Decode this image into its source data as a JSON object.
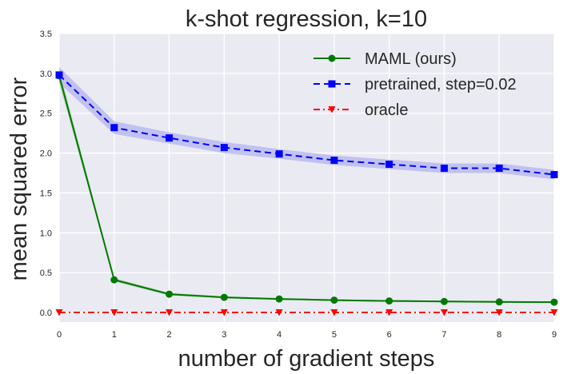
{
  "chart_data": {
    "type": "line",
    "title": "k-shot regression, k=10",
    "xlabel": "number of gradient steps",
    "ylabel": "mean squared error",
    "x": [
      0,
      1,
      2,
      3,
      4,
      5,
      6,
      7,
      8,
      9
    ],
    "xlim": [
      0,
      9
    ],
    "ylim": [
      -0.12,
      3.5
    ],
    "xticks": [
      "0",
      "1",
      "2",
      "3",
      "4",
      "5",
      "6",
      "7",
      "8",
      "9"
    ],
    "yticks": [
      {
        "value": 0.0,
        "label": "0.0"
      },
      {
        "value": 0.5,
        "label": "0.5"
      },
      {
        "value": 1.0,
        "label": "1.0"
      },
      {
        "value": 1.5,
        "label": "1.5"
      },
      {
        "value": 2.0,
        "label": "2.0"
      },
      {
        "value": 2.5,
        "label": "2.5"
      },
      {
        "value": 3.0,
        "label": "3.0"
      },
      {
        "value": 3.5,
        "label": "3.5"
      }
    ],
    "grid": true,
    "background": "#eaeaf2",
    "legend_position": "top-right",
    "series": [
      {
        "name": "MAML (ours)",
        "color": "#007a00",
        "marker": "circle",
        "linestyle": "solid",
        "values": [
          2.97,
          0.41,
          0.23,
          0.19,
          0.17,
          0.155,
          0.145,
          0.138,
          0.133,
          0.13
        ],
        "band": [
          0.08,
          0.02,
          0.015,
          0.012,
          0.01,
          0.01,
          0.01,
          0.01,
          0.01,
          0.01
        ],
        "band_color": "#7fbf7f"
      },
      {
        "name": "pretrained, step=0.02",
        "color": "#0000ff",
        "marker": "square",
        "linestyle": "dashed",
        "values": [
          2.98,
          2.32,
          2.19,
          2.07,
          1.99,
          1.91,
          1.86,
          1.81,
          1.81,
          1.73
        ],
        "band": [
          0.1,
          0.08,
          0.07,
          0.07,
          0.06,
          0.06,
          0.06,
          0.06,
          0.06,
          0.06
        ],
        "band_color": "#aaaaf0"
      },
      {
        "name": "oracle",
        "color": "#ff0000",
        "marker": "triangle-down",
        "linestyle": "dashdot",
        "values": [
          0.0,
          0.0,
          0.0,
          0.0,
          0.0,
          0.0,
          0.0,
          0.0,
          0.0,
          0.0
        ],
        "band": [
          0,
          0,
          0,
          0,
          0,
          0,
          0,
          0,
          0,
          0
        ],
        "band_color": "#ff8080"
      }
    ]
  }
}
